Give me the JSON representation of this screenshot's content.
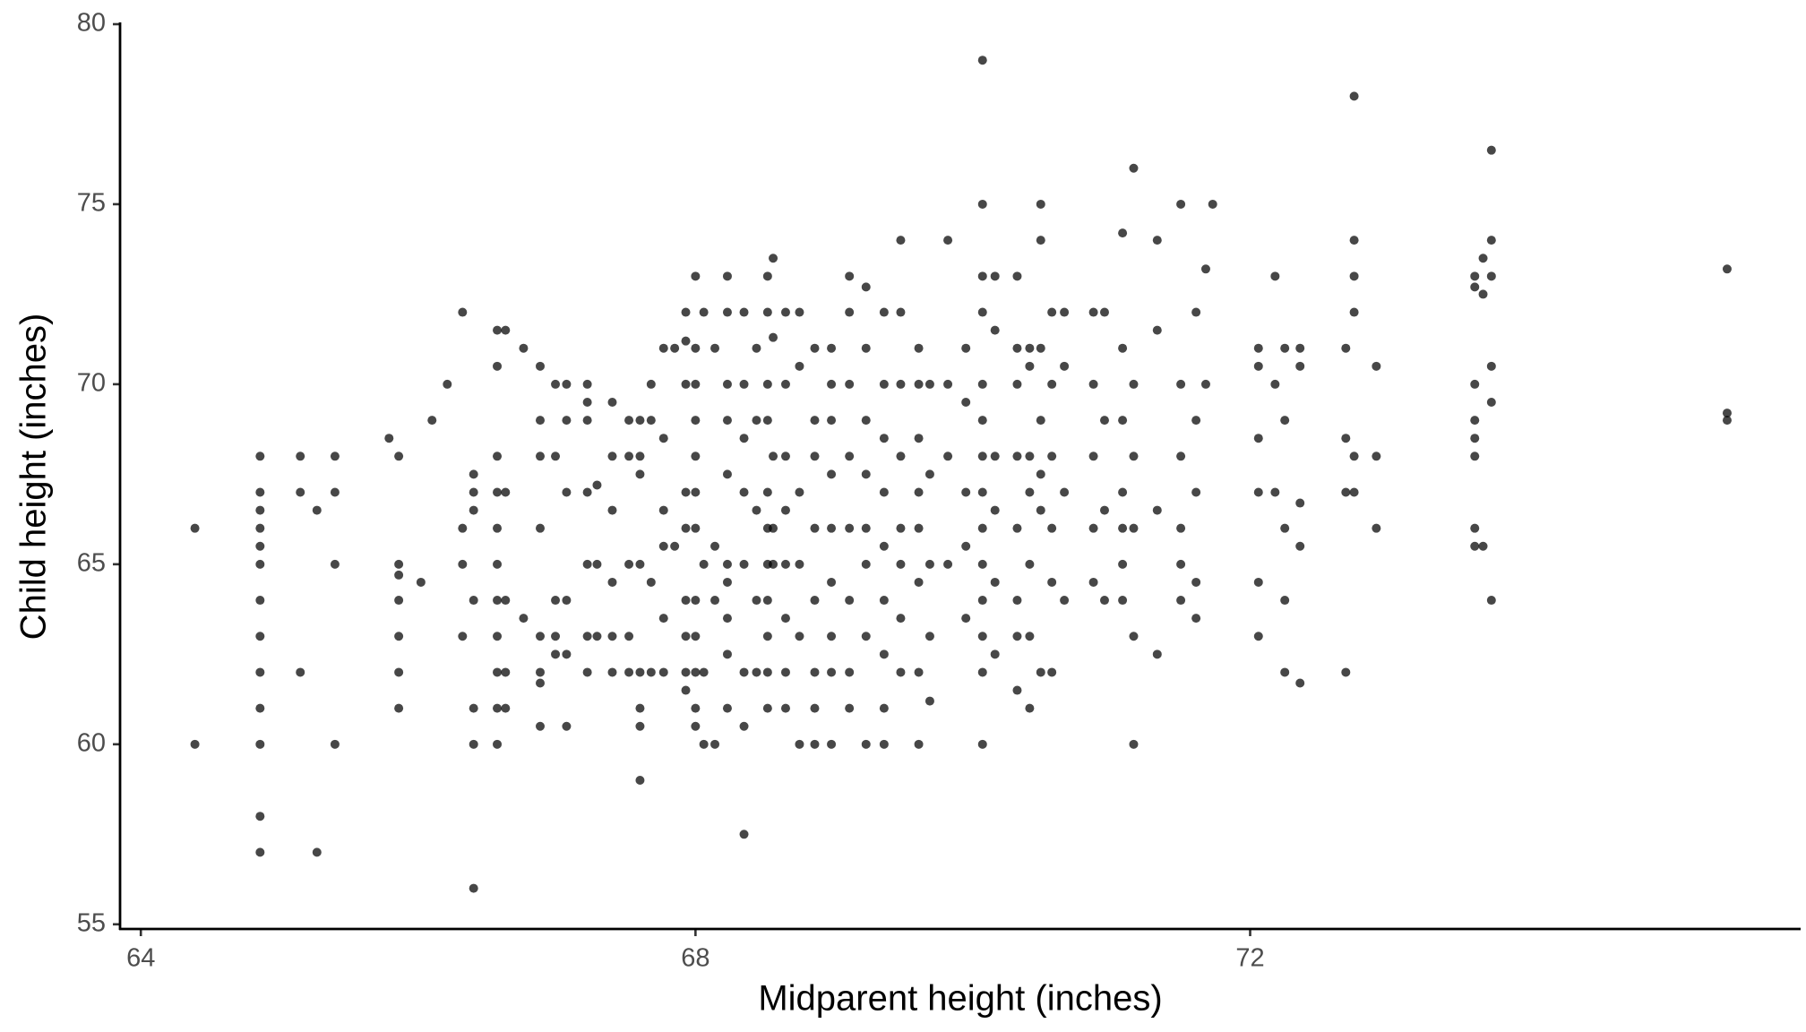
{
  "chart_data": {
    "type": "scatter",
    "xlabel": "Midparent height (inches)",
    "ylabel": "Child height (inches)",
    "color": "#000000",
    "grid": false,
    "xlim": [
      63.85,
      75.97
    ],
    "ylim": [
      54.87,
      80.0
    ],
    "xticks": [
      64,
      68,
      72
    ],
    "yticks": [
      55,
      60,
      65,
      70,
      75,
      80
    ],
    "x": [
      64.39,
      64.39,
      64.86,
      64.86,
      64.86,
      64.86,
      64.86,
      64.86,
      64.86,
      64.86,
      64.86,
      64.86,
      64.86,
      64.86,
      64.86,
      65.15,
      65.15,
      65.15,
      65.27,
      65.27,
      65.4,
      65.4,
      65.4,
      65.4,
      65.79,
      65.86,
      65.86,
      65.86,
      65.86,
      65.86,
      65.86,
      65.86,
      66.02,
      66.1,
      66.21,
      66.32,
      66.32,
      66.32,
      66.32,
      66.4,
      66.4,
      66.4,
      66.4,
      66.4,
      66.4,
      66.4,
      66.57,
      66.57,
      66.57,
      66.57,
      66.57,
      66.57,
      66.57,
      66.57,
      66.57,
      66.57,
      66.57,
      66.63,
      66.63,
      66.63,
      66.63,
      66.63,
      66.76,
      66.76,
      66.88,
      66.88,
      66.88,
      66.88,
      66.88,
      66.88,
      66.88,
      66.88,
      66.99,
      66.99,
      66.99,
      66.99,
      66.99,
      67.07,
      67.07,
      67.07,
      67.07,
      67.07,
      67.07,
      67.22,
      67.22,
      67.22,
      67.22,
      67.22,
      67.22,
      67.22,
      67.29,
      67.29,
      67.29,
      67.4,
      67.4,
      67.4,
      67.4,
      67.4,
      67.4,
      67.52,
      67.52,
      67.52,
      67.52,
      67.52,
      67.6,
      67.6,
      67.6,
      67.6,
      67.6,
      67.6,
      67.6,
      67.6,
      67.68,
      67.68,
      67.68,
      67.68,
      67.77,
      67.77,
      67.77,
      67.77,
      67.77,
      67.77,
      67.85,
      67.85,
      67.93,
      67.93,
      67.93,
      67.93,
      67.93,
      67.93,
      67.93,
      67.93,
      67.93,
      68.0,
      68.0,
      68.0,
      68.0,
      68.0,
      68.0,
      68.0,
      68.0,
      68.0,
      68.0,
      68.0,
      68.0,
      68.06,
      68.06,
      68.06,
      68.06,
      68.14,
      68.14,
      68.14,
      68.14,
      68.23,
      68.23,
      68.23,
      68.23,
      68.23,
      68.23,
      68.23,
      68.23,
      68.23,
      68.23,
      68.35,
      68.35,
      68.35,
      68.35,
      68.35,
      68.35,
      68.35,
      68.35,
      68.44,
      68.44,
      68.44,
      68.44,
      68.44,
      68.52,
      68.52,
      68.52,
      68.52,
      68.52,
      68.52,
      68.52,
      68.52,
      68.52,
      68.52,
      68.52,
      68.56,
      68.56,
      68.56,
      68.56,
      68.56,
      68.65,
      68.65,
      68.65,
      68.65,
      68.65,
      68.65,
      68.65,
      68.65,
      68.75,
      68.75,
      68.75,
      68.75,
      68.75,
      68.75,
      68.86,
      68.86,
      68.86,
      68.86,
      68.86,
      68.86,
      68.86,
      68.86,
      68.98,
      68.98,
      68.98,
      68.98,
      68.98,
      68.98,
      68.98,
      68.98,
      68.98,
      69.11,
      69.11,
      69.11,
      69.11,
      69.11,
      69.11,
      69.11,
      69.11,
      69.23,
      69.23,
      69.23,
      69.23,
      69.23,
      69.23,
      69.23,
      69.23,
      69.36,
      69.36,
      69.36,
      69.36,
      69.36,
      69.36,
      69.36,
      69.36,
      69.36,
      69.48,
      69.48,
      69.48,
      69.48,
      69.48,
      69.48,
      69.48,
      69.48,
      69.61,
      69.61,
      69.61,
      69.61,
      69.61,
      69.61,
      69.61,
      69.61,
      69.69,
      69.69,
      69.69,
      69.69,
      69.69,
      69.82,
      69.82,
      69.82,
      69.82,
      69.95,
      69.95,
      69.95,
      69.95,
      69.95,
      70.07,
      70.07,
      70.07,
      70.07,
      70.07,
      70.07,
      70.07,
      70.07,
      70.07,
      70.07,
      70.07,
      70.07,
      70.07,
      70.07,
      70.16,
      70.16,
      70.16,
      70.16,
      70.16,
      70.16,
      70.32,
      70.32,
      70.32,
      70.32,
      70.32,
      70.32,
      70.32,
      70.32,
      70.41,
      70.41,
      70.41,
      70.41,
      70.41,
      70.41,
      70.41,
      70.49,
      70.49,
      70.49,
      70.49,
      70.49,
      70.49,
      70.49,
      70.57,
      70.57,
      70.57,
      70.57,
      70.57,
      70.57,
      70.66,
      70.66,
      70.66,
      70.66,
      70.87,
      70.87,
      70.87,
      70.87,
      70.87,
      70.95,
      70.95,
      70.95,
      70.95,
      71.08,
      71.08,
      71.08,
      71.08,
      71.08,
      71.08,
      71.08,
      71.16,
      71.16,
      71.16,
      71.16,
      71.16,
      71.16,
      71.33,
      71.33,
      71.33,
      71.33,
      71.5,
      71.5,
      71.5,
      71.5,
      71.5,
      71.5,
      71.61,
      71.61,
      71.61,
      71.61,
      71.61,
      71.68,
      71.68,
      71.73,
      72.06,
      72.06,
      72.06,
      72.06,
      72.06,
      72.06,
      72.18,
      72.18,
      72.18,
      72.25,
      72.25,
      72.25,
      72.25,
      72.25,
      72.36,
      72.36,
      72.36,
      72.36,
      72.36,
      72.69,
      72.69,
      72.69,
      72.69,
      72.75,
      72.75,
      72.75,
      72.75,
      72.75,
      72.75,
      72.91,
      72.91,
      72.91,
      73.62,
      73.62,
      73.62,
      73.62,
      73.62,
      73.62,
      73.62,
      73.62,
      73.68,
      73.68,
      73.68,
      73.74,
      73.74,
      73.74,
      73.74,
      73.74,
      73.74,
      75.44,
      75.44,
      75.44
    ],
    "y": [
      66,
      60,
      68,
      67,
      66.5,
      66,
      65.5,
      65,
      64,
      63,
      62,
      61,
      60,
      58,
      57,
      68,
      67,
      62,
      66.5,
      57,
      68,
      67,
      65,
      60,
      68.5,
      68,
      65,
      64.7,
      64,
      63,
      62,
      61,
      64.5,
      69,
      70,
      72,
      66,
      65,
      63,
      67.5,
      67,
      66.5,
      64,
      61,
      60,
      56,
      71.5,
      70.5,
      68,
      67,
      66,
      65,
      64,
      63,
      62,
      61,
      60,
      71.5,
      64,
      62,
      61,
      67,
      71,
      63.5,
      70.5,
      69,
      68,
      66,
      63,
      62,
      61.7,
      60.5,
      70,
      68,
      64,
      63,
      62.5,
      70,
      67,
      64,
      62.5,
      60.5,
      69,
      70,
      69.5,
      69,
      67,
      65,
      63,
      62,
      65,
      63,
      67.2,
      69.5,
      68,
      66.5,
      64.5,
      63,
      62,
      68,
      65,
      63,
      62,
      69,
      69,
      68,
      67.5,
      65,
      62,
      61,
      60.5,
      59,
      70,
      69,
      64.5,
      62,
      71,
      68.5,
      66.5,
      65.5,
      63.5,
      62,
      71,
      65.5,
      71.2,
      72,
      70,
      67,
      66,
      64,
      63,
      62,
      61.5,
      73,
      71,
      70,
      68,
      67,
      66,
      64,
      63,
      62,
      61,
      60.5,
      69,
      72,
      65,
      62,
      60,
      71,
      60,
      65.5,
      64,
      73,
      72,
      70,
      69,
      67.5,
      65,
      63.5,
      62.5,
      61,
      64.5,
      72,
      70,
      68.5,
      67,
      65,
      62,
      60.5,
      57.5,
      71,
      69,
      66.5,
      64,
      62,
      73,
      72,
      70,
      69,
      67,
      66,
      65,
      64,
      63,
      62,
      61,
      73.5,
      71.3,
      68,
      66,
      65,
      72,
      70,
      68,
      66.5,
      65,
      63.5,
      62,
      61,
      72,
      70.5,
      67,
      65,
      63,
      60,
      71,
      69,
      68,
      66,
      64,
      62,
      61,
      60,
      71,
      70,
      69,
      67.5,
      66,
      64.5,
      63,
      62,
      60,
      73,
      72,
      70,
      68,
      66,
      64,
      62,
      61,
      72.7,
      71,
      69,
      67.5,
      66,
      65,
      63,
      60,
      72,
      70,
      68.5,
      67,
      65.5,
      64,
      62.5,
      61,
      60,
      74,
      72,
      70,
      68,
      66,
      65,
      63.5,
      62,
      71,
      70,
      68.5,
      67,
      66,
      64.5,
      62,
      60,
      70,
      67.5,
      65,
      63,
      61.2,
      74,
      70,
      68,
      65,
      71,
      69.5,
      67,
      65.5,
      63.5,
      79,
      75,
      73,
      72,
      70,
      69,
      68,
      67,
      66,
      65,
      64,
      63,
      62,
      60,
      73,
      71.5,
      68,
      66.5,
      64.5,
      62.5,
      73,
      71,
      70,
      68,
      66,
      64,
      63,
      61.5,
      71,
      70.5,
      68,
      67,
      65,
      63,
      61,
      75,
      74,
      71,
      69,
      67.5,
      66.5,
      62,
      72,
      70,
      68,
      66,
      64.5,
      62,
      72,
      70.5,
      67,
      64,
      72,
      70,
      68,
      66,
      64.5,
      72,
      69,
      66.5,
      64,
      74.2,
      71,
      69,
      67,
      66,
      65,
      64,
      76,
      70,
      68,
      66,
      63,
      60,
      74,
      71.5,
      66.5,
      62.5,
      75,
      70,
      68,
      66,
      65,
      64,
      72,
      69,
      67,
      64.5,
      63.5,
      73.2,
      70,
      75,
      71,
      70.5,
      68.5,
      67,
      64.5,
      63,
      73,
      70,
      67,
      71,
      69,
      66,
      64,
      62,
      71,
      70.5,
      66.7,
      65.5,
      61.7,
      71,
      68.5,
      67,
      62,
      78,
      74,
      73,
      72,
      68,
      67,
      70.5,
      68,
      66,
      73,
      72.7,
      70,
      69,
      68.5,
      68,
      66,
      65.5,
      73.5,
      72.5,
      65.5,
      76.5,
      74,
      73,
      70.5,
      69.5,
      64,
      73.2,
      69.2,
      69
    ]
  }
}
